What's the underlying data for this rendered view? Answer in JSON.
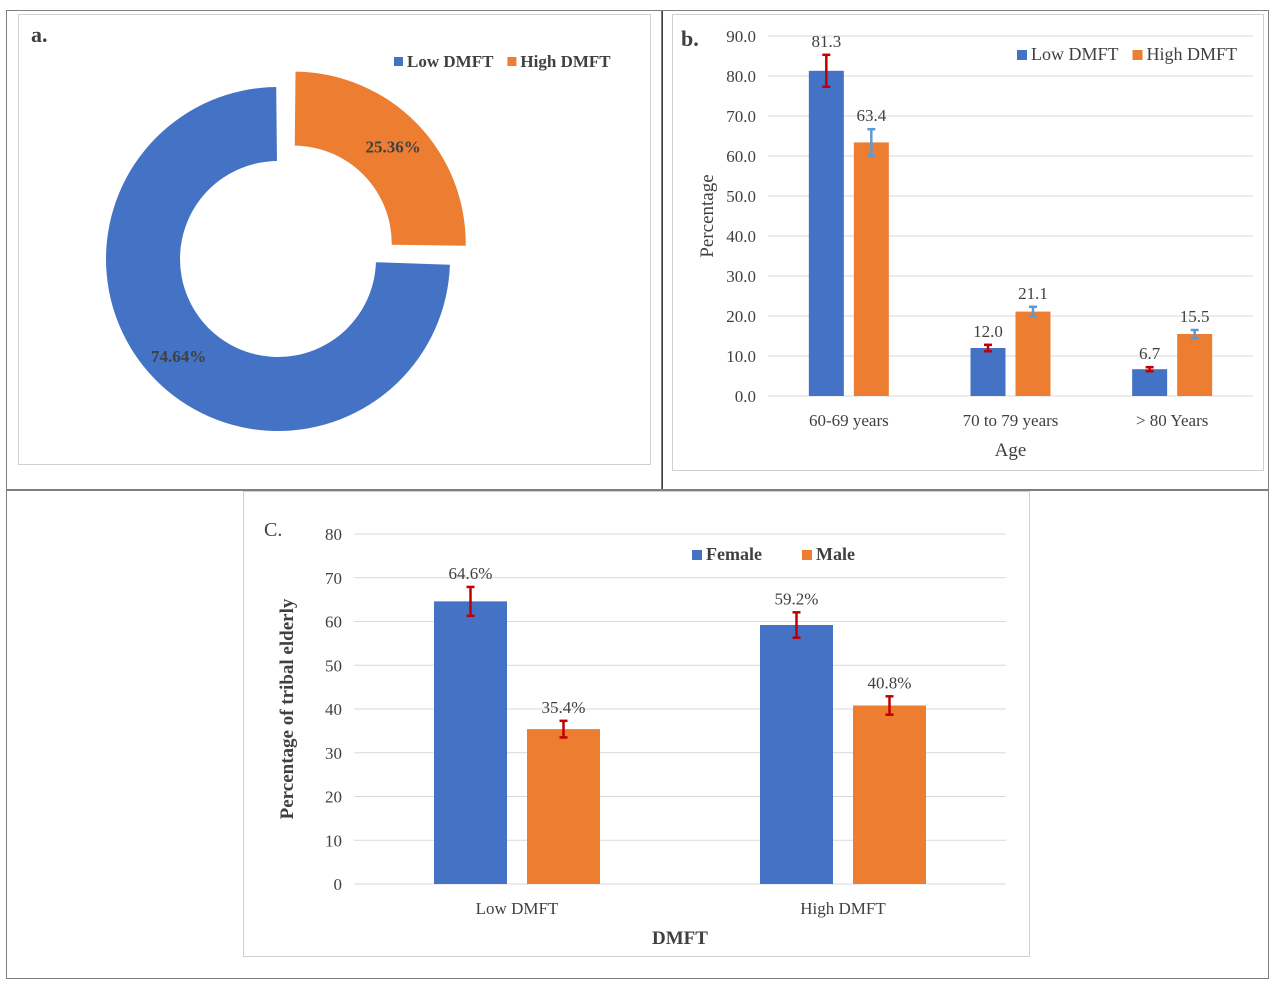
{
  "colors": {
    "blue": "#4472C4",
    "orange": "#ED7D31",
    "red_error": "#C00000",
    "blue_error": "#5B9BD5",
    "grid": "#D9D9D9",
    "text": "#404040"
  },
  "chart_data": [
    {
      "panel_label": "a.",
      "type": "pie",
      "style": "donut",
      "labels": [
        "Low DMFT",
        "High DMFT"
      ],
      "values": [
        74.64,
        25.36
      ],
      "value_labels": [
        "74.64%",
        "25.36%"
      ],
      "legend": [
        "Low DMFT",
        "High DMFT"
      ],
      "legend_position": "top-right",
      "colors": [
        "#4472C4",
        "#ED7D31"
      ],
      "exploded": "High DMFT"
    },
    {
      "panel_label": "b.",
      "type": "bar",
      "categories": [
        "60-69 years",
        "70 to 79 years",
        "> 80 Years"
      ],
      "series": [
        {
          "name": "Low DMFT",
          "values": [
            81.3,
            12.0,
            6.7
          ],
          "value_labels": [
            "81.3",
            "12.0",
            "6.7"
          ],
          "errors": [
            4.0,
            0.8,
            0.5
          ],
          "color": "#4472C4",
          "error_color": "#C00000"
        },
        {
          "name": "High DMFT",
          "values": [
            63.4,
            21.1,
            15.5
          ],
          "value_labels": [
            "63.4",
            "21.1",
            "15.5"
          ],
          "errors": [
            3.3,
            1.2,
            1.0
          ],
          "color": "#ED7D31",
          "error_color": "#5B9BD5"
        }
      ],
      "xlabel": "Age",
      "ylabel": "Percentage",
      "ylim": [
        0,
        90
      ],
      "yticks": [
        "0.0",
        "10.0",
        "20.0",
        "30.0",
        "40.0",
        "50.0",
        "60.0",
        "70.0",
        "80.0",
        "90.0"
      ],
      "grid": true,
      "legend_position": "top-right"
    },
    {
      "panel_label": "C.",
      "type": "bar",
      "categories": [
        "Low DMFT",
        "High DMFT"
      ],
      "series": [
        {
          "name": "Female",
          "values": [
            64.6,
            59.2
          ],
          "value_labels": [
            "64.6%",
            "59.2%"
          ],
          "errors": [
            3.3,
            2.9
          ],
          "color": "#4472C4",
          "error_color": "#C00000"
        },
        {
          "name": "Male",
          "values": [
            35.4,
            40.8
          ],
          "value_labels": [
            "35.4%",
            "40.8%"
          ],
          "errors": [
            1.9,
            2.1
          ],
          "color": "#ED7D31",
          "error_color": "#C00000"
        }
      ],
      "xlabel": "DMFT",
      "ylabel": "Percentage of tribal elderly",
      "ylim": [
        0,
        80
      ],
      "yticks": [
        "0",
        "10",
        "20",
        "30",
        "40",
        "50",
        "60",
        "70",
        "80"
      ],
      "grid": true,
      "legend_position": "top-right"
    }
  ]
}
